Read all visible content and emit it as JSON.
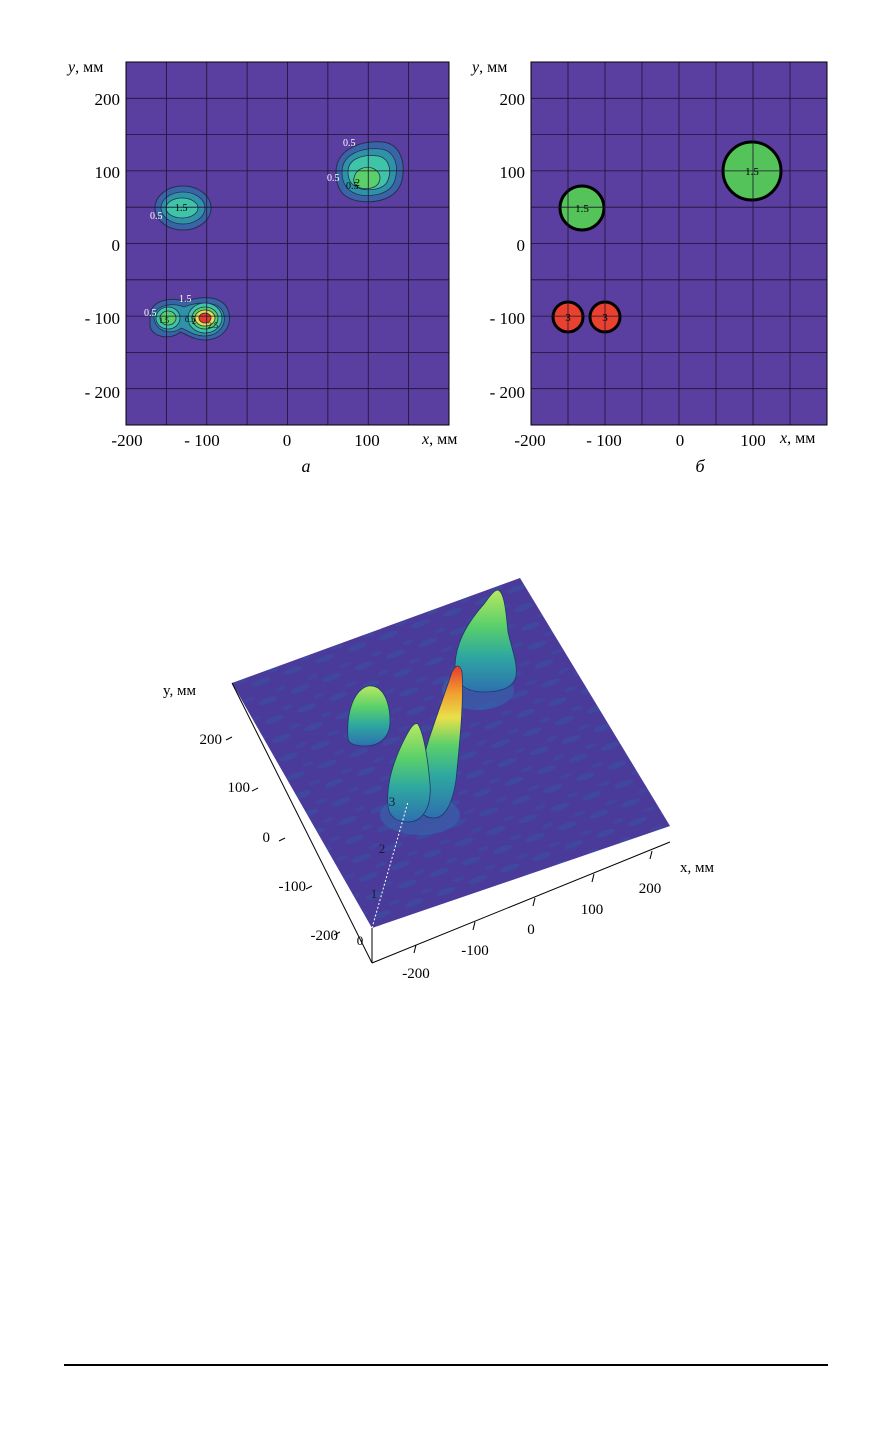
{
  "colors": {
    "background": "#5b3fa0",
    "grid": "#1c1230",
    "level_0_5": "#3a64a8",
    "level_1": "#2e93a8",
    "level_1_5": "#3fc4a8",
    "level_2": "#5ad06a",
    "level_2_5": "#e8e04a",
    "level_3": "#e83a2e",
    "green_fill": "#53c35a",
    "red_fill": "#e8412f"
  },
  "panel_a": {
    "caption": "а",
    "ylabel_var": "y",
    "ylabel_unit": ", мм",
    "xlabel_var": "x",
    "xlabel_unit": ", мм",
    "y_ticks": [
      "200",
      "100",
      "0",
      "- 100",
      "- 200"
    ],
    "x_ticks": [
      "-200",
      "- 100",
      "0",
      "100"
    ],
    "contour_labels": [
      "0.5",
      "1.5",
      "0.5",
      "0.5",
      "0.5",
      "1.5",
      "2",
      "0.5",
      "0.5",
      "1.5",
      "2",
      "2.5"
    ]
  },
  "panel_b": {
    "caption": "б",
    "ylabel_var": "y",
    "ylabel_unit": ", мм",
    "xlabel_var": "x",
    "xlabel_unit": ", мм",
    "y_ticks": [
      "200",
      "100",
      "0",
      "- 100",
      "- 200"
    ],
    "x_ticks": [
      "-200",
      "- 100",
      "0",
      "100"
    ],
    "region_labels": [
      "1.5",
      "1.5",
      "3",
      "3"
    ]
  },
  "panel_3d": {
    "ylabel": "y, мм",
    "xlabel": "x, мм",
    "y_ticks": [
      "200",
      "100",
      "0",
      "-100",
      "-200"
    ],
    "x_ticks": [
      "-200",
      "-100",
      "0",
      "100",
      "200"
    ],
    "z_ticks": [
      "0",
      "1",
      "2",
      "3"
    ]
  },
  "chart_data": [
    {
      "type": "heatmap",
      "panel": "а",
      "x_range": [
        -200,
        200
      ],
      "y_range": [
        -250,
        250
      ],
      "xlabel": "x, мм",
      "ylabel": "y, мм",
      "grid": true,
      "contour_levels": [
        0.5,
        1,
        1.5,
        2,
        2.5,
        3
      ],
      "peaks": [
        {
          "x": -130,
          "y": 50,
          "value": 1.5
        },
        {
          "x": 100,
          "y": 90,
          "value": 2
        },
        {
          "x": -150,
          "y": -100,
          "value": 2
        },
        {
          "x": -100,
          "y": -100,
          "value": 3
        }
      ]
    },
    {
      "type": "heatmap",
      "panel": "б",
      "x_range": [
        -200,
        200
      ],
      "y_range": [
        -250,
        250
      ],
      "xlabel": "x, мм",
      "ylabel": "y, мм",
      "grid": true,
      "regions": [
        {
          "x": -130,
          "y": 50,
          "value": 1.5
        },
        {
          "x": 100,
          "y": 100,
          "value": 1.5
        },
        {
          "x": -150,
          "y": -100,
          "value": 3
        },
        {
          "x": -100,
          "y": -100,
          "value": 3
        }
      ]
    },
    {
      "type": "surface",
      "xlabel": "x, мм",
      "ylabel": "y, мм",
      "x_range": [
        -200,
        200
      ],
      "y_range": [
        -200,
        200
      ],
      "z_range": [
        0,
        3
      ],
      "peaks": [
        {
          "x": -130,
          "y": 50,
          "value": 1.5
        },
        {
          "x": 100,
          "y": 100,
          "value": 2
        },
        {
          "x": -150,
          "y": -100,
          "value": 2
        },
        {
          "x": -100,
          "y": -100,
          "value": 3
        }
      ]
    }
  ]
}
